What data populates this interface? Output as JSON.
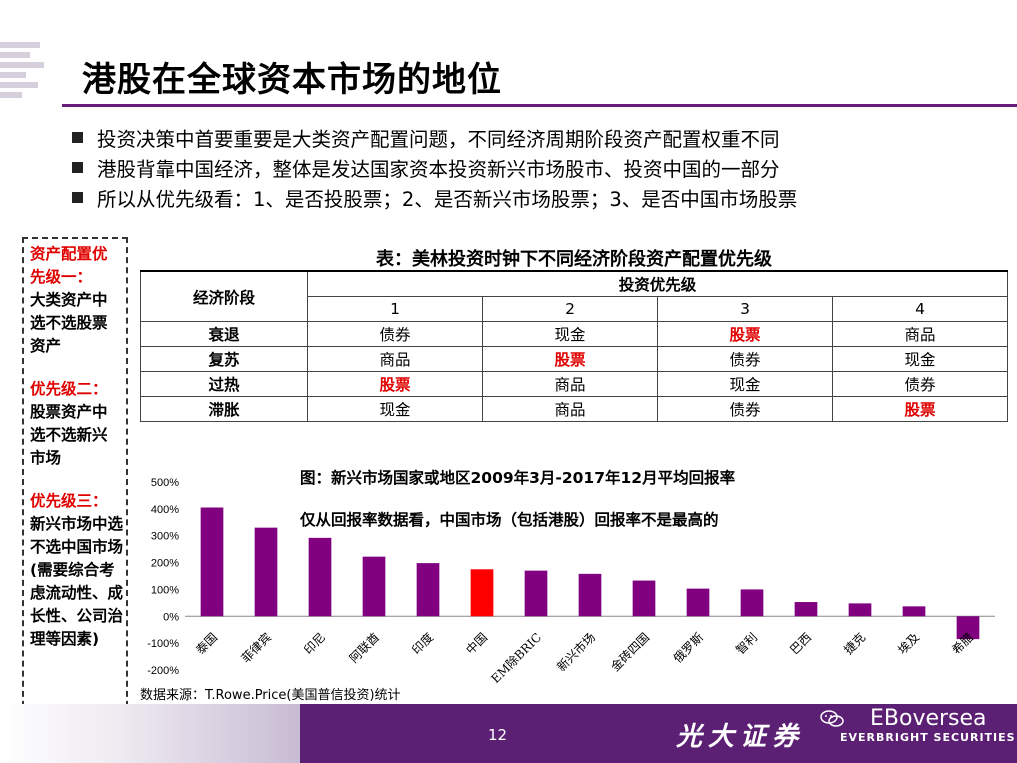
{
  "title": "港股在全球资本市场的地位",
  "bullets": [
    "投资决策中首要重要是大类资产配置问题，不同经济周期阶段资产配置权重不同",
    "港股背靠中国经济，整体是发达国家资本投资新兴市场股市、投资中国的一部分",
    "所以从优先级看：1、是否投股票；2、是否新兴市场股票；3、是否中国市场股票"
  ],
  "left_box": {
    "p1_title": "资产配置优先级一：",
    "p1_body": "大类资产中选不选股票资产",
    "p2_title": "优先级二：",
    "p2_body": "股票资产中选不选新兴市场",
    "p3_title": "优先级三：",
    "p3_body": "新兴市场中选不选中国市场(需要综合考虑流动性、成长性、公司治理等因素)"
  },
  "table": {
    "caption": "表：美林投资时钟下不同经济阶段资产配置优先级",
    "col_stage": "经济阶段",
    "col_priority": "投资优先级",
    "priority_nums": [
      "1",
      "2",
      "3",
      "4"
    ],
    "rows": [
      {
        "stage": "衰退",
        "cells": [
          "债券",
          "现金",
          "股票",
          "商品"
        ],
        "highlight": 2
      },
      {
        "stage": "复苏",
        "cells": [
          "商品",
          "股票",
          "债券",
          "现金"
        ],
        "highlight": 1
      },
      {
        "stage": "过热",
        "cells": [
          "股票",
          "商品",
          "现金",
          "债券"
        ],
        "highlight": 0
      },
      {
        "stage": "滞胀",
        "cells": [
          "现金",
          "商品",
          "债券",
          "股票"
        ],
        "highlight": 3
      }
    ]
  },
  "chart_title": "图：新兴市场国家或地区2009年3月-2017年12月平均回报率",
  "chart_note": "仅从回报率数据看，中国市场（包括港股）回报率不是最高的",
  "source": "数据来源：T.Rowe.Price(美国普信投资)统计",
  "chart_data": {
    "type": "bar",
    "categories": [
      "泰国",
      "菲律宾",
      "印尼",
      "阿联酋",
      "印度",
      "中国",
      "EM除BRIC",
      "新兴市场",
      "金砖四国",
      "俄罗斯",
      "智利",
      "巴西",
      "捷克",
      "埃及",
      "希腊"
    ],
    "values": [
      405,
      330,
      292,
      222,
      198,
      175,
      170,
      158,
      133,
      103,
      100,
      53,
      48,
      37,
      -85
    ],
    "highlight_index": 5,
    "bar_color": "#800080",
    "highlight_color": "#ff0000",
    "yticks": [
      "500%",
      "400%",
      "300%",
      "200%",
      "100%",
      "0%",
      "-100%",
      "-200%"
    ],
    "ylim": [
      -200,
      500
    ]
  },
  "footer": {
    "page": "12",
    "brand_cn": "光大证券",
    "brand_en": "EBoversea",
    "brand_en2": "EVERBRIGHT SECURITIES"
  }
}
